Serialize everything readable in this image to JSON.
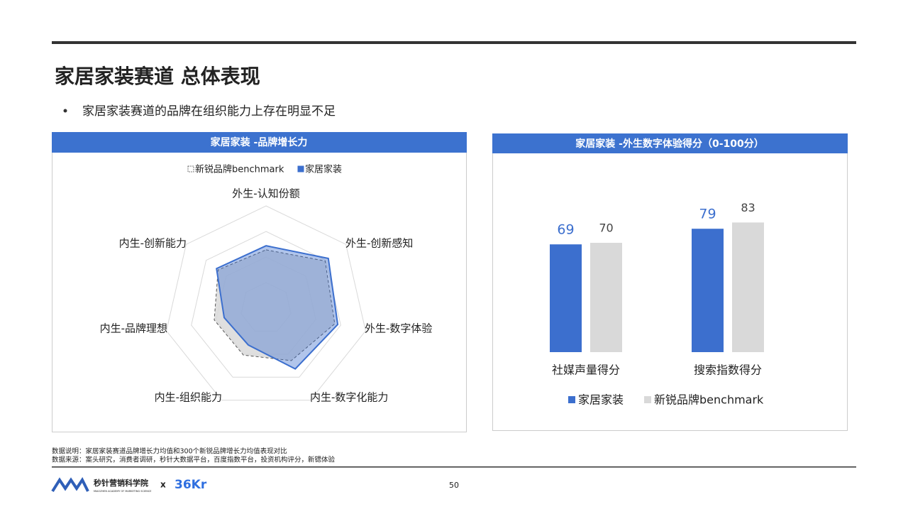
{
  "header": {
    "title": "家居家装赛道 总体表现",
    "bullet": "家居家装赛道的品牌在组织能力上存在明显不足"
  },
  "chart_data": [
    {
      "type": "radar",
      "title": "家居家装 -品牌增长力",
      "categories": [
        "外生-认知份额",
        "外生-创新感知",
        "外生-数字体验",
        "内生-数字化能力",
        "内生-组织能力",
        "内生-品牌理想",
        "内生-创新能力"
      ],
      "series": [
        {
          "name": "新锐品牌benchmark",
          "color": "#d9d9d9",
          "values": [
            57,
            74,
            69,
            57,
            51,
            52,
            60
          ]
        },
        {
          "name": "家居家装",
          "color": "#3c6fce",
          "values": [
            61,
            78,
            72,
            66,
            40,
            42,
            62
          ]
        }
      ],
      "rlim": [
        0,
        100
      ],
      "rticks": [
        25,
        50,
        75,
        100
      ],
      "grid": true,
      "legend": "top"
    },
    {
      "type": "bar",
      "title": "家居家装 -外生数字体验得分（0-100分）",
      "categories": [
        "社媒声量得分",
        "搜索指数得分"
      ],
      "series": [
        {
          "name": "家居家装",
          "color": "#3c6fce",
          "values": [
            69,
            79
          ]
        },
        {
          "name": "新锐品牌benchmark",
          "color": "#d9d9d9",
          "values": [
            70,
            83
          ]
        }
      ],
      "ylim": [
        0,
        100
      ],
      "legend": "bottom"
    }
  ],
  "footer": {
    "notes": [
      "数据说明：家居家装赛道品牌增长力均值和300个新锐品牌增长力均值表现对比",
      "数据来源：案头研究，消费者调研，秒针大数据平台，百度指数平台，投资机构评分，新锶体验"
    ],
    "logo": "秒针营销科学院",
    "logo_sub": "MIAOZHEN ACADEMY OF MARKETING SCIENCE",
    "x": "x",
    "partner": "36Kr",
    "page_number": "50"
  }
}
